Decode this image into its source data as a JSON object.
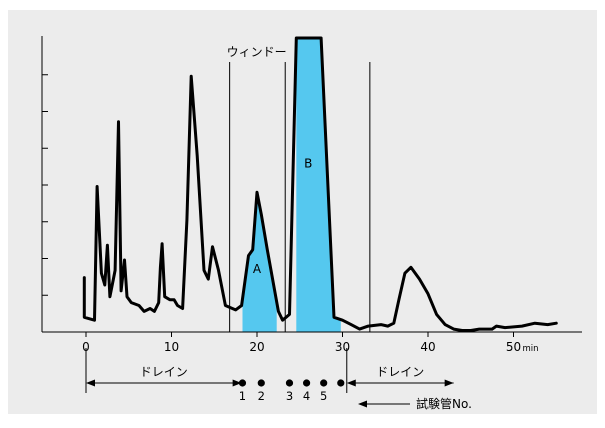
{
  "chart_data": {
    "type": "line",
    "x_unit": "min",
    "xlim": [
      -5,
      55
    ],
    "ylim": [
      0,
      100
    ],
    "x_ticks": [
      {
        "value": 0,
        "label": "0"
      },
      {
        "value": 10,
        "label": "10"
      },
      {
        "value": 20,
        "label": "20"
      },
      {
        "value": 30,
        "label": "30"
      },
      {
        "value": 40,
        "label": "40"
      },
      {
        "value": 50,
        "label": "50"
      }
    ],
    "x_unit_label": "min",
    "y_ticks": [
      0,
      12.5,
      25,
      37.5,
      50,
      62.5,
      75,
      87.5
    ],
    "trace": {
      "x": [
        -0.2,
        -0.2,
        1.0,
        1.3,
        1.8,
        2.2,
        2.5,
        2.8,
        3.2,
        3.4,
        3.8,
        4.1,
        4.5,
        4.8,
        5.3,
        6.2,
        6.8,
        7.5,
        8.0,
        8.5,
        8.7,
        8.9,
        9.2,
        9.8,
        10.3,
        10.7,
        11.3,
        11.8,
        12.3,
        13.0,
        13.8,
        14.3,
        14.8,
        15.5,
        16.3,
        17.5,
        18.2,
        19.0,
        19.5,
        20.0,
        20.5,
        21.2,
        22.5,
        23.0,
        23.8,
        24.6,
        26.5,
        27.5,
        29.0,
        30.0,
        31.0,
        32.0,
        33.0,
        34.5,
        35.3,
        36.0,
        36.6,
        37.3,
        38.0,
        39.0,
        40.0,
        41.0,
        42.0,
        43.0,
        44.0,
        45.0,
        46.0,
        47.5,
        48.0,
        49.0,
        51.0,
        52.5,
        54.0,
        55.0
      ],
      "y": [
        18.5,
        5,
        4,
        49.5,
        20,
        16,
        29.5,
        12,
        18,
        21,
        71.5,
        14,
        24.5,
        12,
        10,
        9,
        7,
        8,
        7,
        10,
        22,
        30,
        12,
        11,
        11,
        9,
        8,
        38,
        87,
        60,
        21,
        18,
        29,
        21,
        9,
        7.5,
        9,
        26,
        28,
        47.5,
        40,
        28,
        7,
        4,
        6,
        100,
        100,
        100,
        5,
        4,
        2.5,
        1,
        2,
        2.5,
        2,
        3,
        11,
        20,
        22,
        18,
        13,
        6,
        2.5,
        1,
        0.5,
        0.5,
        1,
        1,
        2,
        1.5,
        2,
        3,
        2.5,
        3
      ]
    },
    "peaks": [
      {
        "name": "A",
        "label_at": [
          20,
          20
        ]
      },
      {
        "name": "B",
        "label_at": [
          26,
          56
        ]
      }
    ],
    "shaded_regions": [
      {
        "name": "A",
        "x_start": 18.3,
        "x_end": 22.3,
        "color": "#55c8ef"
      },
      {
        "name": "B",
        "x_start": 24.6,
        "x_end": 29.8,
        "color": "#55c8ef"
      }
    ],
    "vertical_lines": [
      16.8,
      23.3,
      33.2
    ],
    "window_label": "ウィンドー",
    "window_label_x": 16.8,
    "drain_label": "ドレイン",
    "drain_ranges": [
      [
        0,
        18.2
      ],
      [
        30.5,
        43
      ]
    ],
    "tubes": [
      {
        "label": "1",
        "x": 18.3
      },
      {
        "label": "2",
        "x": 20.5
      },
      {
        "label": "3",
        "x": 23.8
      },
      {
        "label": "4",
        "x": 25.8
      },
      {
        "label": "5",
        "x": 27.8
      },
      {
        "label": "",
        "x": 29.8
      }
    ],
    "tube_label": "試験管No.",
    "colors": {
      "background": "#ececec",
      "plot_area": "#ececec",
      "line": "#000000",
      "fill": "#55c8ef"
    }
  }
}
